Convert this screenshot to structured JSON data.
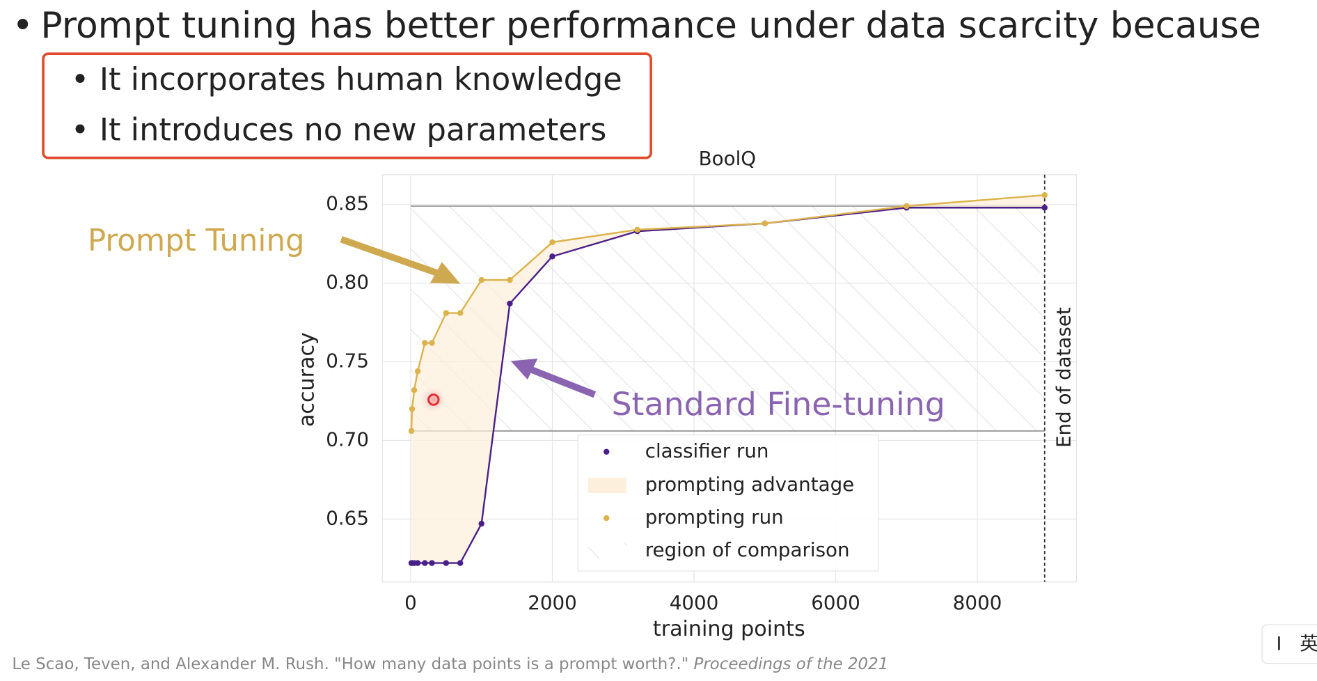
{
  "slide": {
    "bullet": "Prompt tuning has better performance under data scarcity because",
    "sub_bullets": [
      "It incorporates human knowledge",
      "It introduces no new parameters"
    ],
    "citation": "Le Scao, Teven, and Alexander M. Rush. \"How many data points is a prompt worth?.\"",
    "citation_italic": "Proceedings of the 2021",
    "ime": [
      "I",
      "英"
    ]
  },
  "chart_data": {
    "type": "line",
    "title": "BoolQ",
    "x_label": "training points",
    "y_label": "accuracy",
    "x": [
      10,
      20,
      50,
      100,
      200,
      300,
      500,
      700,
      1000,
      1400,
      2000,
      3200,
      5000,
      7000,
      8950
    ],
    "series": [
      {
        "name": "classifier run",
        "color": "#4b1f8a",
        "values": [
          0.622,
          0.622,
          0.622,
          0.622,
          0.622,
          0.622,
          0.622,
          0.622,
          0.647,
          0.787,
          0.817,
          0.833,
          0.838,
          0.848,
          0.848
        ]
      },
      {
        "name": "prompting run",
        "color": "#dcb24a",
        "values": [
          0.706,
          0.72,
          0.732,
          0.744,
          0.762,
          0.762,
          0.781,
          0.781,
          0.802,
          0.802,
          0.826,
          0.834,
          0.838,
          0.849,
          0.856
        ]
      }
    ],
    "prompting_advantage": {
      "name": "prompting advantage",
      "color": "#fcefdc"
    },
    "comparison_region": {
      "name": "region of comparison",
      "x": [
        0,
        8950
      ],
      "y": [
        0.706,
        0.849
      ]
    },
    "end_of_dataset": {
      "x": 8950,
      "label": "End of dataset"
    },
    "annotations": [
      {
        "text": "Prompt Tuning",
        "color": "#cfa94f"
      },
      {
        "text": "Standard Fine-tuning",
        "color": "#8a64b0"
      }
    ],
    "xlim": [
      -400,
      9400
    ],
    "ylim": [
      0.61,
      0.869
    ],
    "xticks": [
      0,
      2000,
      4000,
      6000,
      8000
    ],
    "yticks": [
      0.65,
      {
        "value": 0.7,
        "label": "0.70"
      },
      0.75,
      {
        "value": 0.8,
        "label": "0.80"
      },
      0.85
    ],
    "grid": true,
    "legend": "lower right"
  }
}
